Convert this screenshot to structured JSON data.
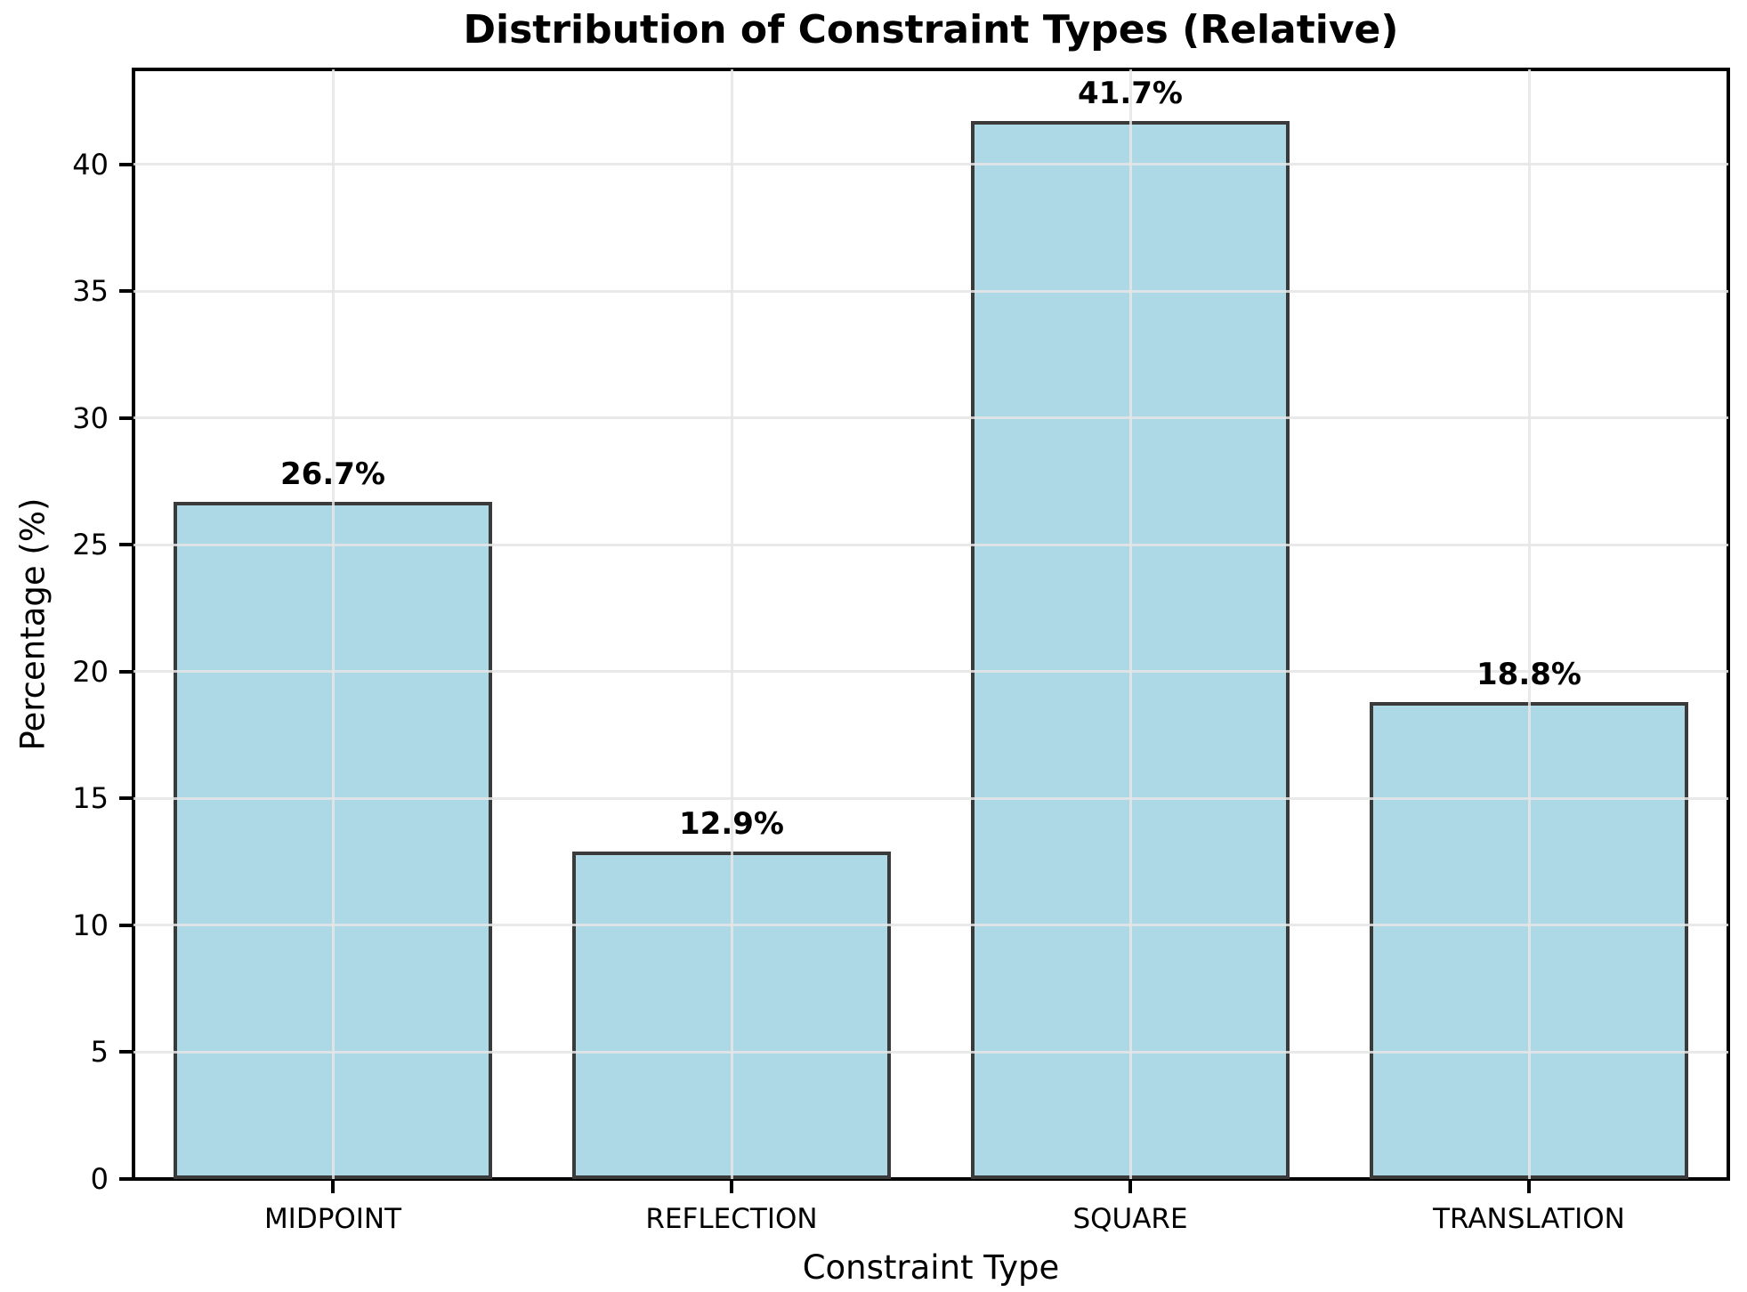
{
  "chart_data": {
    "type": "bar",
    "title": "Distribution of Constraint Types (Relative)",
    "xlabel": "Constraint Type",
    "ylabel": "Percentage (%)",
    "categories": [
      "MIDPOINT",
      "REFLECTION",
      "SQUARE",
      "TRANSLATION"
    ],
    "values": [
      26.7,
      12.9,
      41.7,
      18.8
    ],
    "value_labels": [
      "26.7%",
      "12.9%",
      "41.7%",
      "18.8%"
    ],
    "yticks": [
      0,
      5,
      10,
      15,
      20,
      25,
      30,
      35,
      40
    ],
    "ylim": [
      0,
      43.75
    ],
    "grid": true,
    "legend": "none",
    "bar_color": "#ADD8E6",
    "bar_edge_color": "#3A3A3A",
    "spine_color": "#000000",
    "background_color": "#FFFFFF",
    "bar_width_fraction": 0.8
  }
}
